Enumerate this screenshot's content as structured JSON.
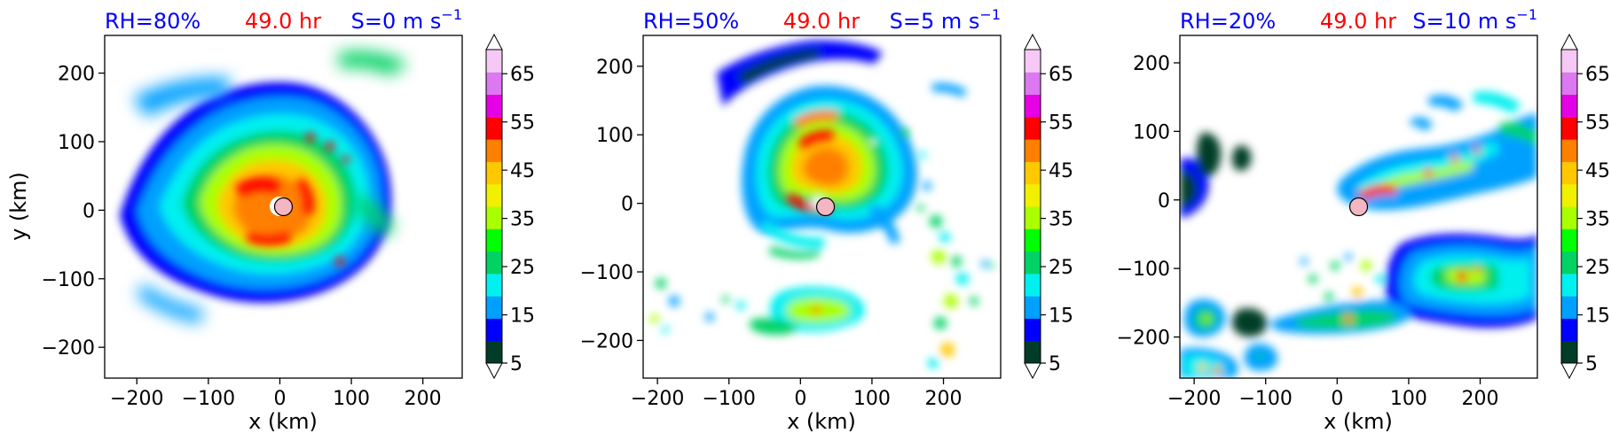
{
  "figure": {
    "colormap": {
      "levels": [
        5,
        10,
        15,
        20,
        25,
        30,
        35,
        40,
        45,
        50,
        55,
        60,
        65,
        70
      ],
      "colors": [
        "#003c28",
        "#0000ff",
        "#00a0ff",
        "#00f0f0",
        "#00d264",
        "#00ff00",
        "#aaff00",
        "#f0f000",
        "#ffc800",
        "#ff8000",
        "#ff0000",
        "#e600e6",
        "#dc78f0",
        "#f5c8f5"
      ],
      "extend": "both",
      "tick_labels": [
        "5",
        "15",
        "25",
        "35",
        "45",
        "55",
        "65"
      ]
    },
    "center_marker_color": "#f4b6c2"
  },
  "chart_data": [
    {
      "type": "heatmap",
      "title_left": "RH=80%",
      "title_center": "49.0 hr",
      "title_right": "S=0 m s",
      "title_right_exp": "−1",
      "xlabel": "x (km)",
      "ylabel": "y (km)",
      "xlim": [
        -245,
        255
      ],
      "ylim": [
        -245,
        255
      ],
      "xticks": [
        -200,
        -100,
        0,
        100,
        200
      ],
      "xtick_labels": [
        "−200",
        "−100",
        "0",
        "100",
        "200"
      ],
      "yticks": [
        -200,
        -100,
        0,
        100,
        200
      ],
      "ytick_labels": [
        "−200",
        "−100",
        "0",
        "100",
        "200"
      ],
      "center": [
        5,
        5
      ]
    },
    {
      "type": "heatmap",
      "title_left": "RH=50%",
      "title_center": "49.0 hr",
      "title_right": "S=5 m s",
      "title_right_exp": "−1",
      "xlabel": "x (km)",
      "ylabel": "",
      "xlim": [
        -220,
        280
      ],
      "ylim": [
        -255,
        245
      ],
      "xticks": [
        -200,
        -100,
        0,
        100,
        200
      ],
      "xtick_labels": [
        "−200",
        "−100",
        "0",
        "100",
        "200"
      ],
      "yticks": [
        -200,
        -100,
        0,
        100,
        200
      ],
      "ytick_labels": [
        "−200",
        "−100",
        "0",
        "100",
        "200"
      ],
      "center": [
        35,
        -5
      ]
    },
    {
      "type": "heatmap",
      "title_left": "RH=20%",
      "title_center": "49.0 hr",
      "title_right": "S=10 m s",
      "title_right_exp": "−1",
      "xlabel": "x (km)",
      "ylabel": "",
      "xlim": [
        -220,
        280
      ],
      "ylim": [
        -260,
        240
      ],
      "xticks": [
        -200,
        -100,
        0,
        100,
        200
      ],
      "xtick_labels": [
        "−200",
        "−100",
        "0",
        "100",
        "200"
      ],
      "yticks": [
        -200,
        -100,
        0,
        100,
        200
      ],
      "ytick_labels": [
        "−200",
        "−100",
        "0",
        "100",
        "200"
      ],
      "center": [
        30,
        -10
      ]
    }
  ]
}
